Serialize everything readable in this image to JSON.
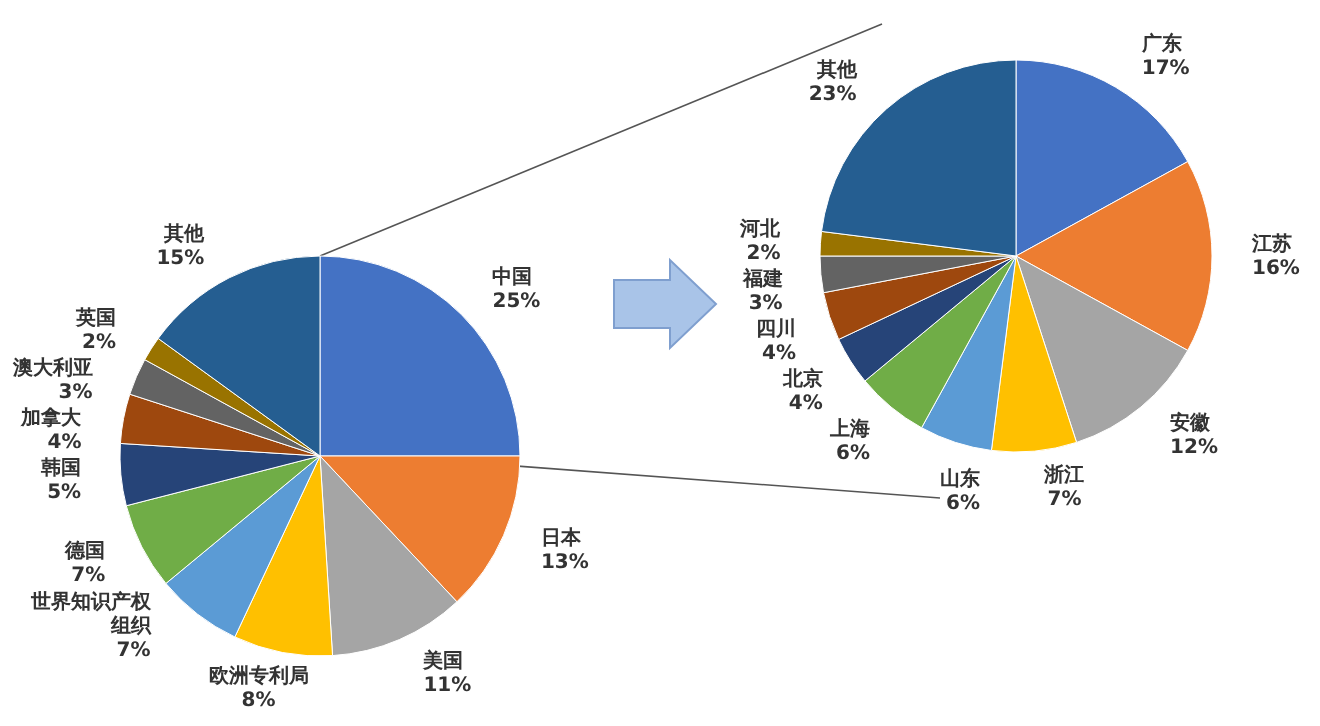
{
  "chart_data": [
    {
      "type": "pie",
      "categories": [
        "中国",
        "日本",
        "美国",
        "欧洲专利局",
        "世界知识产权组织",
        "德国",
        "韩国",
        "加拿大",
        "澳大利亚",
        "英国",
        "其他"
      ],
      "values": [
        25,
        13,
        11,
        8,
        7,
        7,
        5,
        4,
        3,
        2,
        15
      ],
      "value_labels": [
        "25%",
        "13%",
        "11%",
        "8%",
        "7%",
        "7%",
        "5%",
        "4%",
        "3%",
        "2%",
        "15%"
      ],
      "colors": [
        "#4472c4",
        "#ed7d31",
        "#a5a5a5",
        "#ffc000",
        "#5b9bd5",
        "#70ad47",
        "#264478",
        "#9e480e",
        "#636363",
        "#997300",
        "#255e91"
      ]
    },
    {
      "type": "pie",
      "categories": [
        "广东",
        "江苏",
        "安徽",
        "浙江",
        "山东",
        "上海",
        "北京",
        "四川",
        "福建",
        "河北",
        "其他"
      ],
      "values": [
        17,
        16,
        12,
        7,
        6,
        6,
        4,
        4,
        3,
        2,
        23
      ],
      "value_labels": [
        "17%",
        "16%",
        "12%",
        "7%",
        "6%",
        "6%",
        "4%",
        "4%",
        "3%",
        "2%",
        "23%"
      ],
      "colors": [
        "#4472c4",
        "#ed7d31",
        "#a5a5a5",
        "#ffc000",
        "#5b9bd5",
        "#70ad47",
        "#264478",
        "#9e480e",
        "#636363",
        "#997300",
        "#255e91"
      ]
    }
  ]
}
